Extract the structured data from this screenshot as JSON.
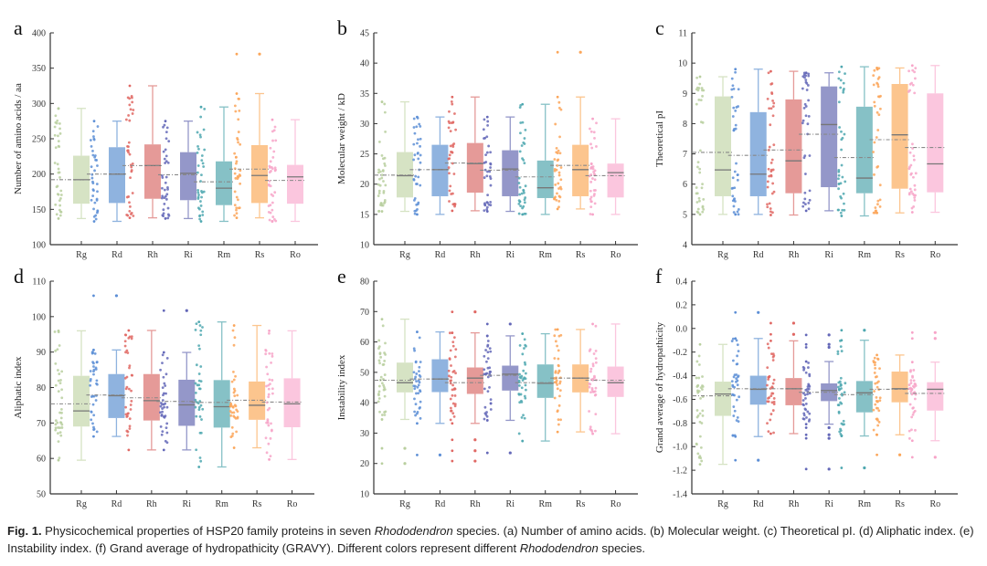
{
  "species": [
    "Rg",
    "Rd",
    "Rh",
    "Ri",
    "Rm",
    "Rs",
    "Ro"
  ],
  "colors": {
    "Rg": "#d6e3c4",
    "Rd": "#8fb3df",
    "Rh": "#e59a98",
    "Ri": "#9497c9",
    "Rm": "#86c1c6",
    "Rs": "#fcc58e",
    "Ro": "#fbc6de"
  },
  "point_colors": {
    "Rg": "#b9cf9f",
    "Rd": "#5d8fd6",
    "Rh": "#e06864",
    "Ri": "#6468b8",
    "Rm": "#4fa8b0",
    "Rs": "#fba65a",
    "Ro": "#f7a4c8"
  },
  "chart_data": [
    {
      "panel": "a",
      "type": "box",
      "title": "",
      "xlabel": "",
      "ylabel": "Number of amino acids / aa",
      "ylim": [
        100,
        400
      ],
      "yticks": [
        100,
        150,
        200,
        250,
        300,
        350,
        400
      ],
      "categories": [
        "Rg",
        "Rd",
        "Rh",
        "Ri",
        "Rm",
        "Rs",
        "Ro"
      ],
      "boxes": [
        {
          "min": 137,
          "q1": 158,
          "median": 192,
          "q3": 226,
          "max": 293,
          "mean": 192,
          "outliers": []
        },
        {
          "min": 133,
          "q1": 159,
          "median": 200,
          "q3": 238,
          "max": 275,
          "mean": 200,
          "outliers": []
        },
        {
          "min": 138,
          "q1": 165,
          "median": 212,
          "q3": 242,
          "max": 325,
          "mean": 212,
          "outliers": []
        },
        {
          "min": 137,
          "q1": 163,
          "median": 201,
          "q3": 231,
          "max": 275,
          "mean": 199,
          "outliers": []
        },
        {
          "min": 133,
          "q1": 156,
          "median": 180,
          "q3": 218,
          "max": 295,
          "mean": 189,
          "outliers": []
        },
        {
          "min": 138,
          "q1": 159,
          "median": 198,
          "q3": 241,
          "max": 314,
          "mean": 207,
          "outliers": [
            370
          ]
        },
        {
          "min": 133,
          "q1": 158,
          "median": 196,
          "q3": 213,
          "max": 277,
          "mean": 191,
          "outliers": []
        }
      ]
    },
    {
      "panel": "b",
      "type": "box",
      "title": "",
      "xlabel": "",
      "ylabel": "Molecular weight / kD",
      "ylim": [
        10,
        45
      ],
      "yticks": [
        10,
        15,
        20,
        25,
        30,
        35,
        40,
        45
      ],
      "categories": [
        "Rg",
        "Rd",
        "Rh",
        "Ri",
        "Rm",
        "Rs",
        "Ro"
      ],
      "boxes": [
        {
          "min": 15.5,
          "q1": 17.8,
          "median": 21.4,
          "q3": 25.3,
          "max": 33.6,
          "mean": 21.5,
          "outliers": []
        },
        {
          "min": 15.0,
          "q1": 18.0,
          "median": 22.4,
          "q3": 26.5,
          "max": 31.1,
          "mean": 22.4,
          "outliers": []
        },
        {
          "min": 15.6,
          "q1": 18.6,
          "median": 23.4,
          "q3": 26.8,
          "max": 34.4,
          "mean": 23.5,
          "outliers": []
        },
        {
          "min": 15.5,
          "q1": 18.0,
          "median": 22.5,
          "q3": 25.6,
          "max": 31.1,
          "mean": 22.3,
          "outliers": []
        },
        {
          "min": 15.0,
          "q1": 17.7,
          "median": 19.4,
          "q3": 23.9,
          "max": 33.2,
          "mean": 21.2,
          "outliers": []
        },
        {
          "min": 15.9,
          "q1": 18.0,
          "median": 22.4,
          "q3": 26.5,
          "max": 34.4,
          "mean": 23.1,
          "outliers": [
            41.8
          ]
        },
        {
          "min": 15.0,
          "q1": 17.8,
          "median": 21.9,
          "q3": 23.4,
          "max": 30.8,
          "mean": 21.4,
          "outliers": []
        }
      ]
    },
    {
      "panel": "c",
      "type": "box",
      "title": "",
      "xlabel": "",
      "ylabel": "Theoretical pI",
      "ylim": [
        4,
        11
      ],
      "yticks": [
        4,
        5,
        6,
        7,
        8,
        9,
        10,
        11
      ],
      "categories": [
        "Rg",
        "Rd",
        "Rh",
        "Ri",
        "Rm",
        "Rs",
        "Ro"
      ],
      "boxes": [
        {
          "min": 5.0,
          "q1": 5.6,
          "median": 6.47,
          "q3": 8.9,
          "max": 9.55,
          "mean": 7.05,
          "outliers": []
        },
        {
          "min": 5.0,
          "q1": 5.6,
          "median": 6.33,
          "q3": 8.38,
          "max": 9.8,
          "mean": 6.95,
          "outliers": []
        },
        {
          "min": 4.98,
          "q1": 5.7,
          "median": 6.77,
          "q3": 8.8,
          "max": 9.73,
          "mean": 7.13,
          "outliers": []
        },
        {
          "min": 5.12,
          "q1": 5.9,
          "median": 7.97,
          "q3": 9.23,
          "max": 9.68,
          "mean": 7.65,
          "outliers": []
        },
        {
          "min": 4.95,
          "q1": 5.7,
          "median": 6.2,
          "q3": 8.56,
          "max": 9.88,
          "mean": 6.88,
          "outliers": []
        },
        {
          "min": 5.05,
          "q1": 5.85,
          "median": 7.63,
          "q3": 9.31,
          "max": 9.84,
          "mean": 7.47,
          "outliers": []
        },
        {
          "min": 5.07,
          "q1": 5.73,
          "median": 6.67,
          "q3": 9.0,
          "max": 9.92,
          "mean": 7.21,
          "outliers": []
        }
      ]
    },
    {
      "panel": "d",
      "type": "box",
      "title": "",
      "xlabel": "",
      "ylabel": "Aliphatic index",
      "ylim": [
        50,
        110
      ],
      "yticks": [
        50,
        60,
        70,
        80,
        90,
        100,
        110
      ],
      "categories": [
        "Rg",
        "Rd",
        "Rh",
        "Ri",
        "Rm",
        "Rs",
        "Ro"
      ],
      "boxes": [
        {
          "min": 59.5,
          "q1": 69.0,
          "median": 73.4,
          "q3": 83.3,
          "max": 96.0,
          "mean": 75.4,
          "outliers": []
        },
        {
          "min": 66.2,
          "q1": 71.4,
          "median": 77.7,
          "q3": 83.8,
          "max": 90.6,
          "mean": 77.9,
          "outliers": [
            105.9
          ]
        },
        {
          "min": 62.4,
          "q1": 70.7,
          "median": 76.3,
          "q3": 83.8,
          "max": 96.1,
          "mean": 77.1,
          "outliers": []
        },
        {
          "min": 62.4,
          "q1": 69.2,
          "median": 75.1,
          "q3": 82.2,
          "max": 89.9,
          "mean": 76.1,
          "outliers": [
            101.7
          ]
        },
        {
          "min": 57.6,
          "q1": 68.7,
          "median": 74.6,
          "q3": 82.1,
          "max": 98.5,
          "mean": 75.8,
          "outliers": []
        },
        {
          "min": 63.0,
          "q1": 70.9,
          "median": 75.0,
          "q3": 81.7,
          "max": 97.5,
          "mean": 76.4,
          "outliers": []
        },
        {
          "min": 59.7,
          "q1": 68.8,
          "median": 75.4,
          "q3": 82.6,
          "max": 96.0,
          "mean": 75.9,
          "outliers": []
        }
      ]
    },
    {
      "panel": "e",
      "type": "box",
      "title": "",
      "xlabel": "",
      "ylabel": "Instability index",
      "ylim": [
        10,
        80
      ],
      "yticks": [
        10,
        20,
        30,
        40,
        50,
        60,
        70,
        80
      ],
      "categories": [
        "Rg",
        "Rd",
        "Rh",
        "Ri",
        "Rm",
        "Rs",
        "Ro"
      ],
      "boxes": [
        {
          "min": 34.5,
          "q1": 43.4,
          "median": 46.6,
          "q3": 53.2,
          "max": 67.5,
          "mean": 47.4,
          "outliers": [
            25.0,
            20.0
          ]
        },
        {
          "min": 33.2,
          "q1": 43.5,
          "median": 47.8,
          "q3": 54.3,
          "max": 63.3,
          "mean": 47.8,
          "outliers": [
            22.8
          ]
        },
        {
          "min": 33.2,
          "q1": 42.9,
          "median": 48.1,
          "q3": 51.6,
          "max": 63.0,
          "mean": 46.6,
          "outliers": [
            69.9,
            27.8,
            24.2,
            20.8
          ]
        },
        {
          "min": 34.2,
          "q1": 44.0,
          "median": 49.4,
          "q3": 52.2,
          "max": 62.0,
          "mean": 49.0,
          "outliers": [
            65.9,
            23.5
          ]
        },
        {
          "min": 27.4,
          "q1": 41.6,
          "median": 46.4,
          "q3": 52.6,
          "max": 62.7,
          "mean": 46.6,
          "outliers": []
        },
        {
          "min": 30.4,
          "q1": 43.4,
          "median": 48.1,
          "q3": 52.6,
          "max": 64.1,
          "mean": 48.1,
          "outliers": []
        },
        {
          "min": 29.8,
          "q1": 41.9,
          "median": 46.6,
          "q3": 51.9,
          "max": 65.9,
          "mean": 47.4,
          "outliers": []
        }
      ]
    },
    {
      "panel": "f",
      "type": "box",
      "title": "",
      "xlabel": "",
      "ylabel": "Grand average of hydropathicity",
      "ylim": [
        -1.4,
        0.4
      ],
      "yticks": [
        -1.4,
        -1.2,
        -1.0,
        -0.8,
        -0.6,
        -0.4,
        -0.2,
        0.0,
        0.2,
        0.4
      ],
      "categories": [
        "Rg",
        "Rd",
        "Rh",
        "Ri",
        "Rm",
        "Rs",
        "Ro"
      ],
      "boxes": [
        {
          "min": -1.15,
          "q1": -0.74,
          "median": -0.555,
          "q3": -0.45,
          "max": -0.135,
          "mean": -0.57,
          "outliers": []
        },
        {
          "min": -0.915,
          "q1": -0.645,
          "median": -0.515,
          "q3": -0.4,
          "max": -0.085,
          "mean": -0.51,
          "outliers": [
            0.135,
            -1.115
          ]
        },
        {
          "min": -0.89,
          "q1": -0.65,
          "median": -0.51,
          "q3": -0.42,
          "max": -0.105,
          "mean": -0.51,
          "outliers": [
            0.045,
            -0.05
          ]
        },
        {
          "min": -0.81,
          "q1": -0.615,
          "median": -0.525,
          "q3": -0.465,
          "max": -0.28,
          "mean": -0.54,
          "outliers": [
            -0.055,
            -0.135,
            -0.16,
            -0.84,
            -0.9,
            -0.93,
            -1.19
          ]
        },
        {
          "min": -0.91,
          "q1": -0.71,
          "median": -0.545,
          "q3": -0.445,
          "max": -0.1,
          "mean": -0.56,
          "outliers": [
            -0.015,
            -1.18
          ]
        },
        {
          "min": -0.9,
          "q1": -0.625,
          "median": -0.51,
          "q3": -0.365,
          "max": -0.225,
          "mean": -0.515,
          "outliers": [
            -1.07
          ]
        },
        {
          "min": -0.95,
          "q1": -0.695,
          "median": -0.515,
          "q3": -0.455,
          "max": -0.285,
          "mean": -0.55,
          "outliers": [
            -0.035,
            -0.085,
            -1.09
          ]
        }
      ]
    }
  ],
  "caption": {
    "label": "Fig. 1.",
    "text_1": " Physicochemical properties of HSP20 family proteins in seven ",
    "genus_1": "Rhododendron",
    "text_2": " species. (a) Number of amino acids. (b) Molecular weight. (c) Theoretical pI. (d) Aliphatic index. (e) Instability index. (f) Grand average of hydropathicity (GRAVY). Different colors represent different ",
    "genus_2": "Rhododendron",
    "text_3": " species."
  }
}
